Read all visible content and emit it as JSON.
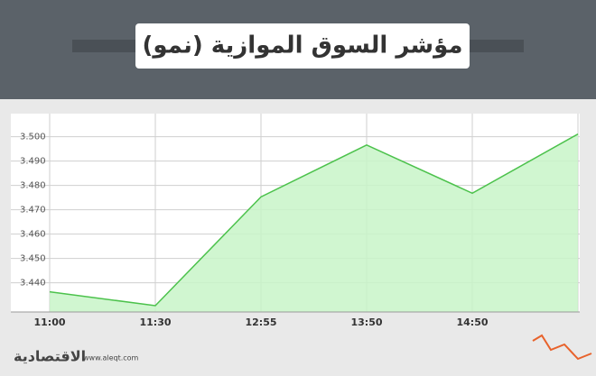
{
  "chart_data": {
    "type": "area",
    "title": "مؤشر السوق الموازية (نمو)",
    "categories": [
      "11:00",
      "11:30",
      "12:55",
      "13:50",
      "14:50",
      null
    ],
    "values": [
      3.4363,
      3.4306,
      3.4753,
      3.4966,
      3.4768,
      3.5011
    ],
    "color": "#4cc24c",
    "fill": "#c8f5c8",
    "ylim": [
      3.428,
      3.5095
    ],
    "yticks": [
      {
        "value": 3.44,
        "label": "3.440"
      },
      {
        "value": 3.45,
        "label": "3.450"
      },
      {
        "value": 3.46,
        "label": "3.460"
      },
      {
        "value": 3.47,
        "label": "3.470"
      },
      {
        "value": 3.48,
        "label": "3.480"
      },
      {
        "value": 3.49,
        "label": "3.490"
      },
      {
        "value": 3.5,
        "label": "3.500"
      }
    ],
    "grid": true
  },
  "footer": {
    "brand": "الاقتصادية",
    "url": "www.aleqt.com"
  }
}
